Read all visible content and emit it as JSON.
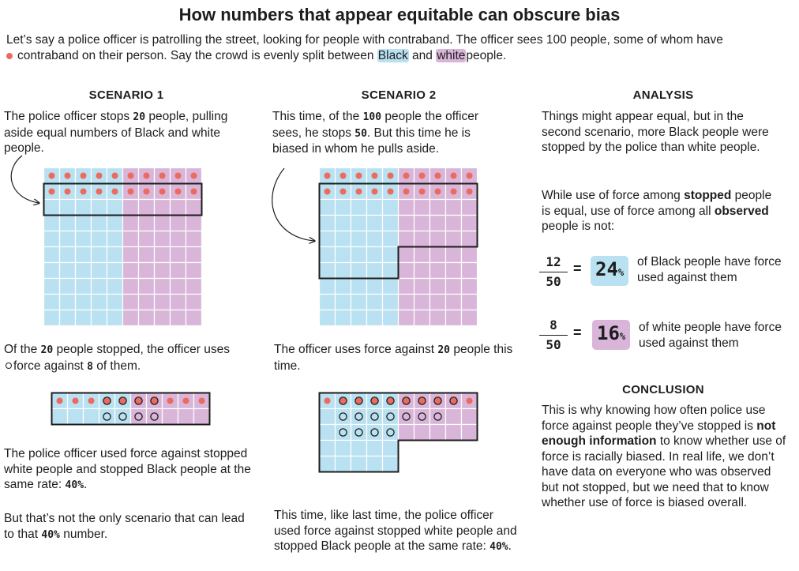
{
  "title": "How numbers that appear equitable can obscure bias",
  "intro": {
    "line1": "Let’s say a police officer is patrolling the street, looking for people with contraband. The officer sees 100 people, some of whom have",
    "line2_a": "contraband on their person. Say the crowd is evenly split between",
    "black": "Black",
    "and": "and",
    "white": "white",
    "line2_b": "people."
  },
  "scenario1": {
    "header": "SCENARIO 1",
    "p1_a": "The police officer stops",
    "p1_num": "20",
    "p1_b": "people, pulling aside equal numbers of Black and white people.",
    "p2_a": "Of the",
    "p2_num1": "20",
    "p2_b": "people stopped, the officer uses",
    "p2_c": "force against",
    "p2_num2": "8",
    "p2_d": "of them.",
    "p3_a": "The police officer used force against stopped white people and stopped Black people at the same rate:",
    "p3_num": "40%",
    "p3_end": ".",
    "p4_a": "But that’s not the only scenario that can lead to that",
    "p4_num": "40%",
    "p4_b": "number."
  },
  "scenario2": {
    "header": "SCENARIO 2",
    "p1_a": "This time, of the",
    "p1_num1": "100",
    "p1_b": "people the officer sees, he stops",
    "p1_num2": "50",
    "p1_c": ". But this time he is biased in whom he pulls aside.",
    "p2_a": "The officer uses force against",
    "p2_num": "20",
    "p2_b": "people this time.",
    "p3_a": "This time, like last time, the police officer used force against stopped white people and stopped Black people at the same rate:",
    "p3_num": "40%",
    "p3_end": "."
  },
  "analysis": {
    "header": "ANALYSIS",
    "p1": "Things might appear equal, but in the second scenario, more Black people were stopped by the police than white people.",
    "p2_a": "While use of force among",
    "p2_b1": "stopped",
    "p2_c": "people is equal, use of force among all",
    "p2_b2": "observed",
    "p2_d": "people is not:",
    "eq1": {
      "num": "12",
      "den": "50",
      "equals": "=",
      "pct": "24",
      "pct_sign": "%",
      "text": "of Black people have force used against them"
    },
    "eq2": {
      "num": "8",
      "den": "50",
      "equals": "=",
      "pct": "16",
      "pct_sign": "%",
      "text": "of white people have force used against them"
    }
  },
  "conclusion": {
    "header": "CONCLUSION",
    "p_a": "This is why knowing how often police use force against people they’ve stopped is",
    "p_b": "not enough information",
    "p_c": "to know whether use of force is racially biased. In real life, we don’t have data on everyone who was observed but not stopped, but we need that to know whether use of force is biased overall."
  },
  "colors": {
    "black_group": "#b9e1f1",
    "white_group": "#d9b6d9",
    "contraband_dot": "#ec6b5f",
    "outline": "#1d1d1d"
  }
}
